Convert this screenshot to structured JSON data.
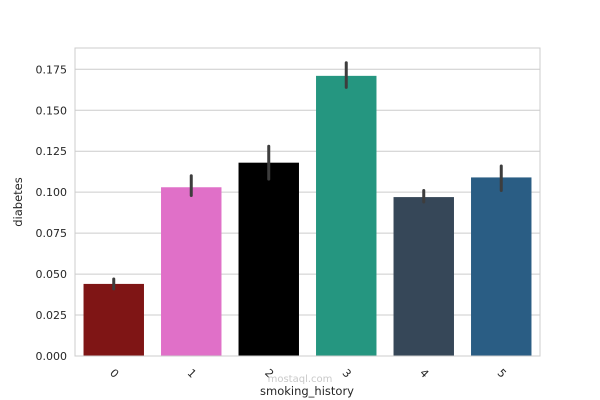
{
  "chart_data": {
    "type": "bar",
    "title": "",
    "xlabel": "smoking_history",
    "ylabel": "diabetes",
    "categories": [
      "0",
      "1",
      "2",
      "3",
      "4",
      "5"
    ],
    "values": [
      0.044,
      0.103,
      0.118,
      0.171,
      0.097,
      0.109
    ],
    "error_bars": [
      [
        0.041,
        0.047
      ],
      [
        0.098,
        0.11
      ],
      [
        0.108,
        0.128
      ],
      [
        0.164,
        0.179
      ],
      [
        0.094,
        0.101
      ],
      [
        0.101,
        0.116
      ]
    ],
    "colors": [
      "#7f1515",
      "#e070c8",
      "#000000",
      "#259680",
      "#364758",
      "#2a5d84"
    ],
    "ylim": [
      0,
      0.188
    ],
    "yticks": [
      "0.000",
      "0.025",
      "0.050",
      "0.075",
      "0.100",
      "0.125",
      "0.150",
      "0.175"
    ],
    "ytick_values": [
      0,
      0.025,
      0.05,
      0.075,
      0.1,
      0.125,
      0.15,
      0.175
    ],
    "grid": true,
    "legend": "none"
  },
  "watermark": {
    "text": "mostaql.com"
  }
}
